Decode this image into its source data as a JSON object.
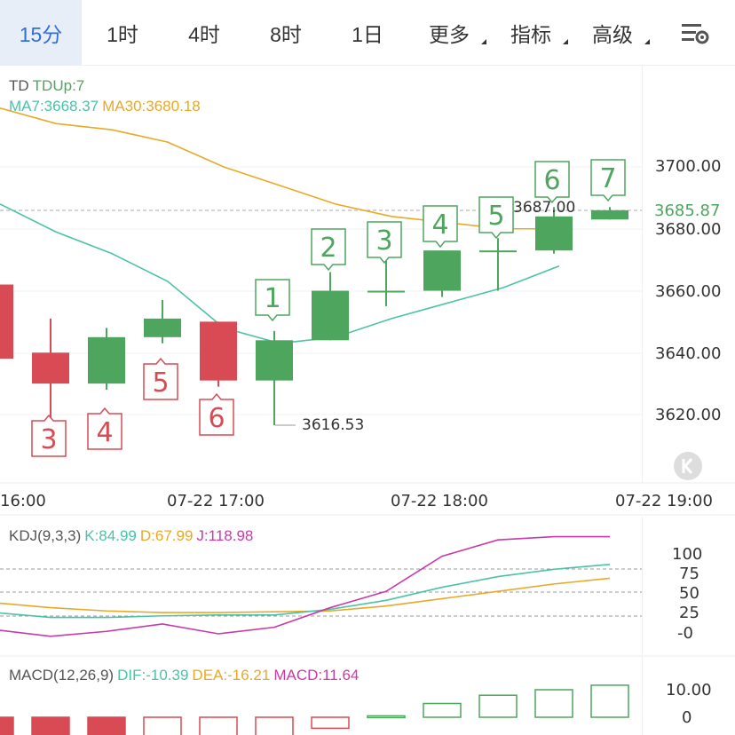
{
  "tabs": [
    {
      "label": "15分",
      "active": true
    },
    {
      "label": "1时"
    },
    {
      "label": "4时"
    },
    {
      "label": "8时"
    },
    {
      "label": "1日"
    },
    {
      "label": "更多",
      "dropdown": true
    },
    {
      "label": "指标",
      "dropdown": true
    },
    {
      "label": "高级",
      "dropdown": true
    }
  ],
  "settings_icon": "chart-settings-icon",
  "main_legend": {
    "td": "TD",
    "td_up": "TDUp:7",
    "ma7": "MA7:3668.37",
    "ma30": "MA30:3680.18"
  },
  "price_axis": [
    "3700.00",
    "3680.00",
    "3660.00",
    "3640.00",
    "3620.00"
  ],
  "current_price": "3685.87",
  "high_label": "3687.00",
  "low_label": "3616.53",
  "time_axis": [
    "16:00",
    "07-22 17:00",
    "07-22 18:00",
    "07-22 19:00"
  ],
  "kdj_legend": {
    "name": "KDJ(9,3,3)",
    "k": "K:84.99",
    "d": "D:67.99",
    "j": "J:118.98"
  },
  "kdj_axis": [
    "100",
    "75",
    "50",
    "25",
    "-0"
  ],
  "macd_legend": {
    "name": "MACD(12,26,9)",
    "dif": "DIF:-10.39",
    "dea": "DEA:-16.21",
    "macd": "MACD:11.64"
  },
  "macd_axis": [
    "10.00",
    "0"
  ],
  "td_markers_down": [
    "3",
    "4",
    "5",
    "6"
  ],
  "td_markers_up": [
    "1",
    "2",
    "3",
    "4",
    "5",
    "6",
    "7"
  ],
  "colors": {
    "up": "#4ea65e",
    "down": "#d84b54",
    "ma7": "#4cc2a8",
    "ma30": "#e8a928",
    "j": "#c83aa8",
    "accent": "#2e6fd8"
  },
  "chart_data": {
    "type": "candlestick",
    "candles": [
      {
        "o": 3662,
        "h": 3668,
        "l": 3638,
        "c": 3638
      },
      {
        "o": 3640,
        "h": 3651,
        "l": 3619,
        "c": 3630
      },
      {
        "o": 3630,
        "h": 3648,
        "l": 3628,
        "c": 3645
      },
      {
        "o": 3645,
        "h": 3657,
        "l": 3643,
        "c": 3651
      },
      {
        "o": 3650,
        "h": 3650,
        "l": 3629,
        "c": 3631
      },
      {
        "o": 3631,
        "h": 3647,
        "l": 3616.53,
        "c": 3644
      },
      {
        "o": 3644,
        "h": 3666,
        "l": 3644,
        "c": 3660
      },
      {
        "o": 3660,
        "h": 3670,
        "l": 3655,
        "c": 3660
      },
      {
        "o": 3660,
        "h": 3673,
        "l": 3658,
        "c": 3673
      },
      {
        "o": 3673,
        "h": 3677,
        "l": 3660,
        "c": 3673
      },
      {
        "o": 3673,
        "h": 3687,
        "l": 3672,
        "c": 3684
      },
      {
        "o": 3683,
        "h": 3687,
        "l": 3683,
        "c": 3686
      }
    ],
    "ma7": [
      3688,
      3679,
      3672,
      3663,
      3648,
      3643,
      3645,
      3651,
      3656,
      3661,
      3668
    ],
    "ma30": [
      3719,
      3714,
      3712,
      3708,
      3700,
      3694,
      3688,
      3684,
      3682,
      3680,
      3680
    ],
    "kdj_k": [
      26,
      20,
      20,
      22,
      23,
      23,
      30,
      41,
      57,
      70,
      79,
      85
    ],
    "kdj_d": [
      38,
      32,
      28,
      26,
      26,
      27,
      28,
      34,
      43,
      52,
      61,
      68
    ],
    "kdj_j": [
      5,
      -3,
      3,
      12,
      0,
      8,
      32,
      52,
      95,
      115,
      119,
      119
    ],
    "macd_hist": [
      -12,
      -10,
      -9,
      -9,
      -9,
      -8,
      -4,
      0.5,
      5,
      8,
      10,
      11.64
    ]
  }
}
